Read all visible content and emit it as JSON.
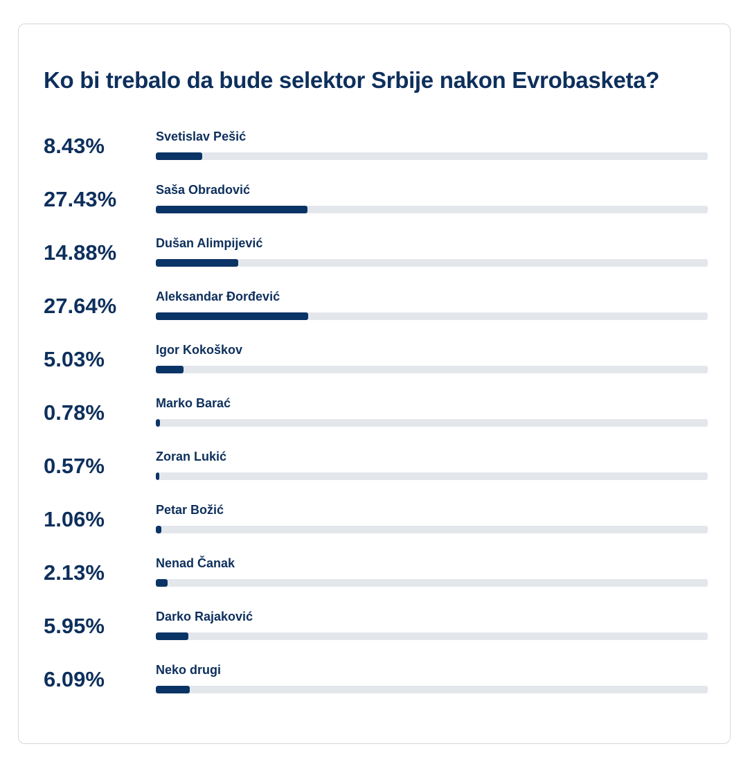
{
  "poll": {
    "title": "Ko bi trebalo da bude selektor Srbije nakon Evrobasketa?",
    "bar_color": "#0b3466",
    "track_color": "#e3e7ec",
    "text_color": "#0d2f5c"
  },
  "chart_data": {
    "type": "bar",
    "orientation": "horizontal",
    "title": "Ko bi trebalo da bude selektor Srbije nakon Evrobasketa?",
    "scale_max": 100,
    "categories": [
      "Svetislav Pešić",
      "Saša Obradović",
      "Dušan Alimpijević",
      "Aleksandar Đorđević",
      "Igor Kokoškov",
      "Marko Barać",
      "Zoran Lukić",
      "Petar Božić",
      "Nenad Čanak",
      "Darko Rajaković",
      "Neko drugi"
    ],
    "labels": [
      "8.43%",
      "27.43%",
      "14.88%",
      "27.64%",
      "5.03%",
      "0.78%",
      "0.57%",
      "1.06%",
      "2.13%",
      "5.95%",
      "6.09%"
    ],
    "values": [
      8.43,
      27.43,
      14.88,
      27.64,
      5.03,
      0.78,
      0.57,
      1.06,
      2.13,
      5.95,
      6.09
    ]
  }
}
